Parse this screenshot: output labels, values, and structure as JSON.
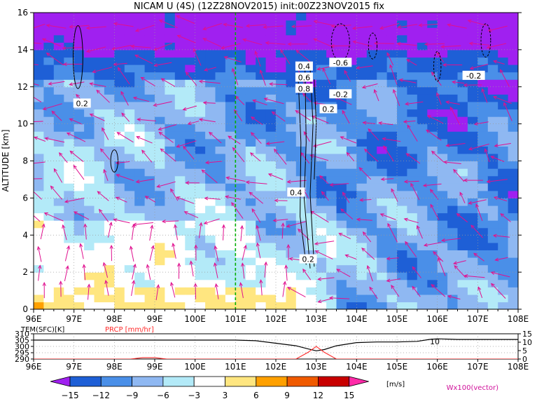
{
  "title": "NICAM U (4S) (12Z28NOV2015) init:00Z23NOV2015 fix",
  "main_chart": {
    "type": "heatmap",
    "ylabel": "ALTITUDE [km]",
    "y_ticks": [
      "0",
      "2",
      "4",
      "6",
      "8",
      "10",
      "12",
      "14",
      "16"
    ],
    "x_ticks": [
      "96E",
      "97E",
      "98E",
      "99E",
      "100E",
      "101E",
      "102E",
      "103E",
      "104E",
      "105E",
      "106E",
      "107E",
      "108E"
    ],
    "xlim": [
      96,
      108
    ],
    "ylim": [
      0,
      16
    ],
    "marked_longitude": 101.0,
    "contour_labels": [
      {
        "text": "0.2",
        "lon": 97.2,
        "alt": 11.1
      },
      {
        "text": "0.4",
        "lon": 102.7,
        "alt": 13.1
      },
      {
        "text": "0.6",
        "lon": 102.7,
        "alt": 12.5
      },
      {
        "text": "0.8",
        "lon": 102.7,
        "alt": 11.9
      },
      {
        "text": "0.4",
        "lon": 102.5,
        "alt": 6.3
      },
      {
        "text": "0.2",
        "lon": 102.8,
        "alt": 2.7
      },
      {
        "text": "-0.6",
        "lon": 103.6,
        "alt": 13.3
      },
      {
        "text": "-0.2",
        "lon": 103.6,
        "alt": 11.6
      },
      {
        "text": "0.2",
        "lon": 103.3,
        "alt": 10.8
      },
      {
        "text": "-0.2",
        "lon": 106.9,
        "alt": 12.6
      }
    ]
  },
  "surface_chart": {
    "type": "line",
    "label_left": "TEM(SFC)[K]",
    "label_right": "PRCP [mm/hr]",
    "y_left_ticks": [
      "310",
      "305",
      "300",
      "295",
      "290"
    ],
    "y_left_lim": [
      290,
      310
    ],
    "y_right_ticks": [
      "15",
      "10",
      "5",
      "0"
    ],
    "y_right_lim": [
      0,
      15
    ],
    "x_ticks": [
      "96E",
      "97E",
      "98E",
      "99E",
      "100E",
      "101E",
      "102E",
      "103E",
      "104E",
      "105E",
      "106E",
      "107E",
      "108E"
    ],
    "annotation": "10",
    "series": [
      {
        "name": "TEM(SFC)[K]",
        "color": "#000000",
        "x": [
          96,
          97,
          98,
          99,
          100,
          101,
          101.5,
          102,
          102.5,
          102.8,
          103.0,
          103.2,
          103.5,
          104,
          104.5,
          105,
          105.5,
          105.8,
          106,
          106.5,
          107,
          107.5,
          108
        ],
        "values": [
          305,
          305,
          305,
          305,
          305,
          305,
          304.5,
          302.5,
          300.5,
          298,
          296.5,
          297.5,
          300.5,
          303,
          303.5,
          303.5,
          304,
          305.5,
          306,
          305.5,
          305.5,
          305.5,
          305.5
        ]
      },
      {
        "name": "PRCP [mm/hr]",
        "color": "#ff2a2a",
        "x": [
          96,
          98.4,
          98.7,
          99,
          99.3,
          102.5,
          102.8,
          103.0,
          103.2,
          103.5,
          108
        ],
        "values": [
          0,
          0,
          0.8,
          0.8,
          0,
          0,
          4,
          7.5,
          4,
          0,
          0
        ]
      }
    ]
  },
  "colorbar": {
    "unit": "[m/s]",
    "tick_labels": [
      "−15",
      "−12",
      "−9",
      "−6",
      "−3",
      "3",
      "6",
      "9",
      "12",
      "15"
    ],
    "colors": [
      "#a020f0",
      "#1e5fd6",
      "#4a8fe8",
      "#8fb8f2",
      "#b3eaf8",
      "#ffffff",
      "#ffe680",
      "#ffa000",
      "#f05a00",
      "#c80000",
      "#ff2aa8"
    ]
  },
  "vector_label": "Wx100(vector)"
}
